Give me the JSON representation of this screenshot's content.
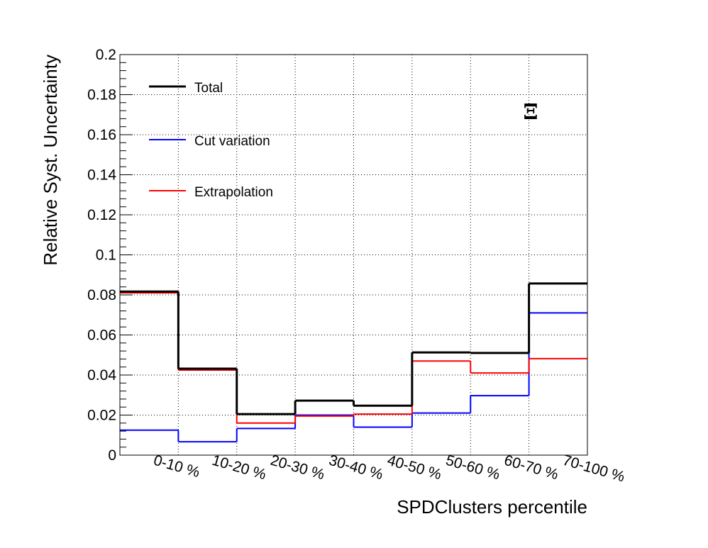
{
  "chart_data": {
    "type": "line",
    "subtype": "step-histogram",
    "categories": [
      "0-10 %",
      "10-20 %",
      "20-30 %",
      "30-40 %",
      "40-50 %",
      "50-60 %",
      "60-70 %",
      "70-100 %"
    ],
    "series": [
      {
        "name": "Total",
        "color": "#000000",
        "values": [
          0.0817,
          0.0432,
          0.0205,
          0.0272,
          0.0247,
          0.0513,
          0.051,
          0.0857
        ]
      },
      {
        "name": "Cut variation",
        "color": "#0000ff",
        "values": [
          0.0125,
          0.0067,
          0.0133,
          0.02,
          0.014,
          0.021,
          0.0297,
          0.071
        ]
      },
      {
        "name": "Extrapolation",
        "color": "#ff0000",
        "values": [
          0.081,
          0.0425,
          0.016,
          0.0195,
          0.0205,
          0.047,
          0.041,
          0.0482
        ]
      }
    ],
    "xlabel": "SPDClusters percentile",
    "ylabel": "Relative Syst. Uncertainty",
    "ylim": [
      0,
      0.2
    ],
    "yticks": [
      "0",
      "0.02",
      "0.04",
      "0.06",
      "0.08",
      "0.1",
      "0.12",
      "0.14",
      "0.16",
      "0.18",
      "0.2"
    ],
    "grid": true,
    "legend_position": "top-left",
    "annotation": "Ξ"
  }
}
